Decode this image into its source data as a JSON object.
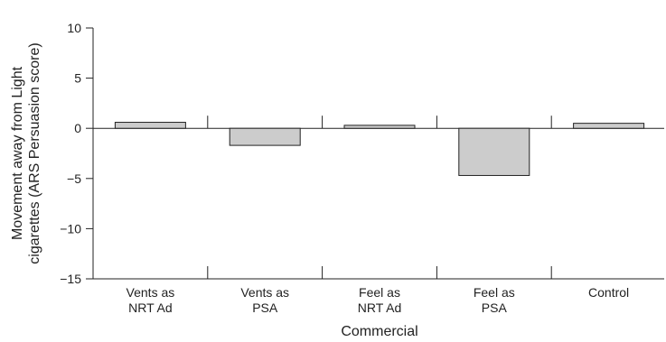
{
  "chart_data": {
    "type": "bar",
    "categories": [
      [
        "Vents as",
        "NRT Ad"
      ],
      [
        "Vents as",
        "PSA"
      ],
      [
        "Feel as",
        "NRT Ad"
      ],
      [
        "Feel as",
        "PSA"
      ],
      [
        "Control"
      ]
    ],
    "values": [
      0.6,
      -1.7,
      0.3,
      -4.7,
      0.5
    ],
    "xlabel": "Commercial",
    "ylabel": [
      "Movement away from Light",
      "cigarettes (ARS Persuasion score)"
    ],
    "ylim": [
      -15,
      10
    ],
    "yticks": [
      "10",
      "5",
      "0",
      "−5",
      "−10",
      "−15"
    ],
    "ytick_values": [
      10,
      5,
      0,
      -5,
      -10,
      -15
    ],
    "grid": false,
    "bar_color": "#cccccc",
    "bar_edge_color": "#222222"
  }
}
